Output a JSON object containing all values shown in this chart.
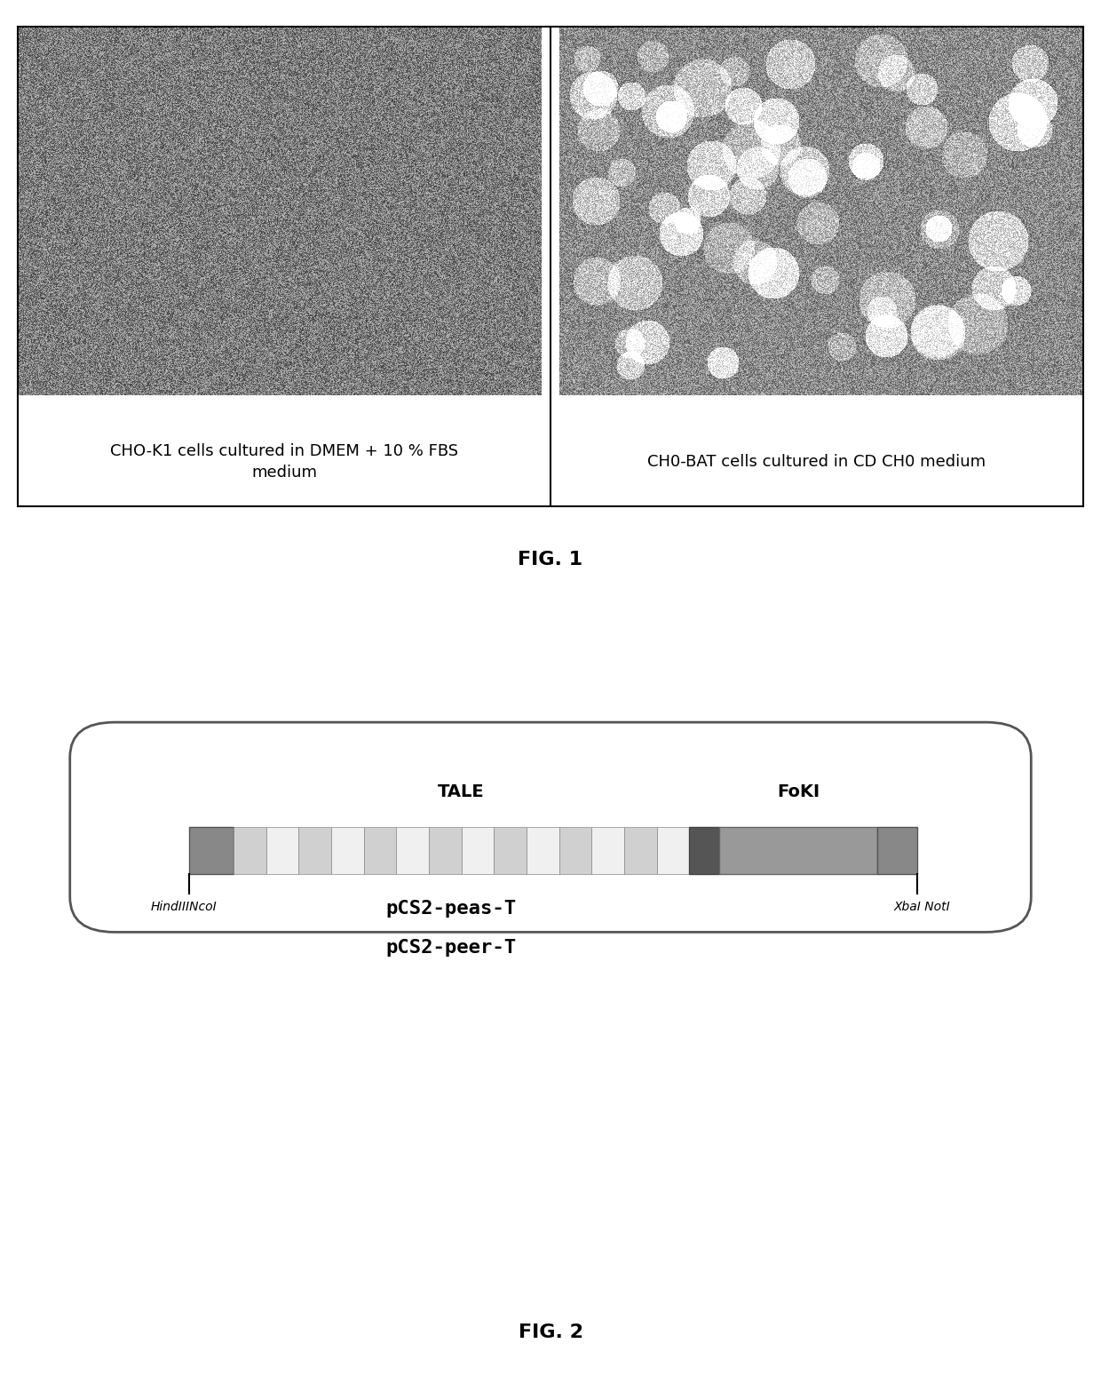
{
  "fig1_caption_left": "CHO-K1 cells cultured in DMEM + 10 % FBS\nmedium",
  "fig1_caption_right": "CH0-BAT cells cultured in CD CH0 medium",
  "fig1_label": "FIG. 1",
  "fig2_label": "FIG. 2",
  "fig2_plasmid_line1": "pCS2-peas-T",
  "fig2_plasmid_line2": "pCS2-peer-T",
  "tale_label": "TALE",
  "fokI_label": "FoKI",
  "hindIII_label": "HindIIINcoI",
  "xbaI_label": "XbaI NotI",
  "bg_color": "#ffffff"
}
